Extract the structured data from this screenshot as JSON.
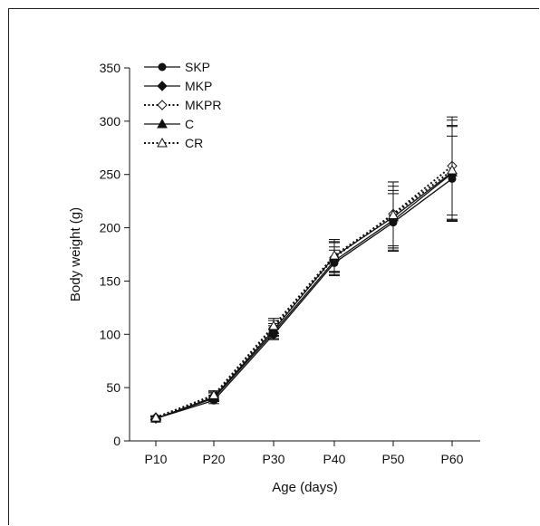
{
  "chart_data": {
    "type": "line",
    "xlabel": "Age (days)",
    "ylabel": "Body weight (g)",
    "categories": [
      "P10",
      "P20",
      "P30",
      "P40",
      "P50",
      "P60"
    ],
    "ylim": [
      0,
      350
    ],
    "yticks": [
      0,
      50,
      100,
      150,
      200,
      250,
      300,
      350
    ],
    "legend_position": "top-left",
    "series": [
      {
        "name": "SKP",
        "marker": "circle",
        "filled": true,
        "dash": "solid",
        "values": [
          21,
          38,
          100,
          167,
          205,
          246
        ],
        "errors": [
          1.5,
          3,
          5,
          12,
          27,
          40
        ]
      },
      {
        "name": "MKP",
        "marker": "diamond",
        "filled": true,
        "dash": "solid",
        "values": [
          21,
          40,
          102,
          169,
          207,
          251
        ],
        "errors": [
          1.5,
          3,
          6,
          13,
          28,
          44
        ]
      },
      {
        "name": "MKPR",
        "marker": "diamond",
        "filled": false,
        "dash": "dotted",
        "values": [
          22,
          42,
          106,
          172,
          213,
          258
        ],
        "errors": [
          1.5,
          4,
          7,
          14,
          30,
          46
        ]
      },
      {
        "name": "C",
        "marker": "triangle",
        "filled": true,
        "dash": "solid",
        "values": [
          21,
          41,
          104,
          173,
          210,
          252
        ],
        "errors": [
          1.5,
          4,
          6,
          14,
          29,
          44
        ]
      },
      {
        "name": "CR",
        "marker": "triangle",
        "filled": false,
        "dash": "dotted",
        "values": [
          22,
          43,
          108,
          174,
          212,
          254
        ],
        "errors": [
          1.5,
          4,
          7,
          15,
          31,
          47
        ]
      }
    ]
  }
}
